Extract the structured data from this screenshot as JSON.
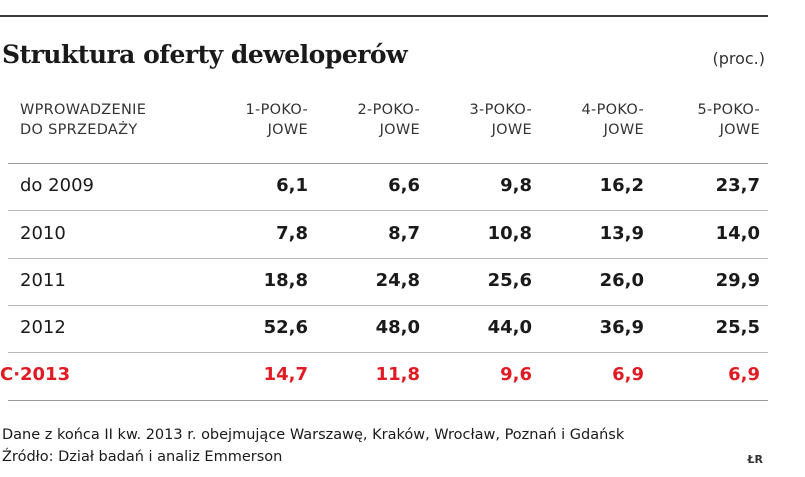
{
  "chart_data": {
    "type": "table",
    "title": "Struktura oferty deweloperów",
    "unit": "(proc.)",
    "row_header": "WPROWADZENIE\nDO SPRZEDAŻY",
    "columns": [
      "1-POKO-\nJOWE",
      "2-POKO-\nJOWE",
      "3-POKO-\nJOWE",
      "4-POKO-\nJOWE",
      "5-POKO-\nJOWE"
    ],
    "rows": [
      {
        "label": "do 2009",
        "values": [
          "6,1",
          "6,6",
          "9,8",
          "16,2",
          "23,7"
        ],
        "highlight": false
      },
      {
        "label": "2010",
        "values": [
          "7,8",
          "8,7",
          "10,8",
          "13,9",
          "14,0"
        ],
        "highlight": false
      },
      {
        "label": "2011",
        "values": [
          "18,8",
          "24,8",
          "25,6",
          "26,0",
          "29,9"
        ],
        "highlight": false
      },
      {
        "label": "2012",
        "values": [
          "52,6",
          "48,0",
          "44,0",
          "36,9",
          "25,5"
        ],
        "highlight": false
      },
      {
        "label": "2013",
        "values": [
          "14,7",
          "11,8",
          "9,6",
          "6,9",
          "6,9"
        ],
        "highlight": true
      }
    ],
    "highlight_marker": "C·",
    "highlight_color": "#e01b24"
  },
  "footer": {
    "note": "Dane z końca II kw. 2013 r. obejmujące Warszawę, Kraków, Wrocław, Poznań i Gdańsk",
    "source": "Źródło: Dział badań i analiz Emmerson",
    "logo": "ŁR"
  }
}
